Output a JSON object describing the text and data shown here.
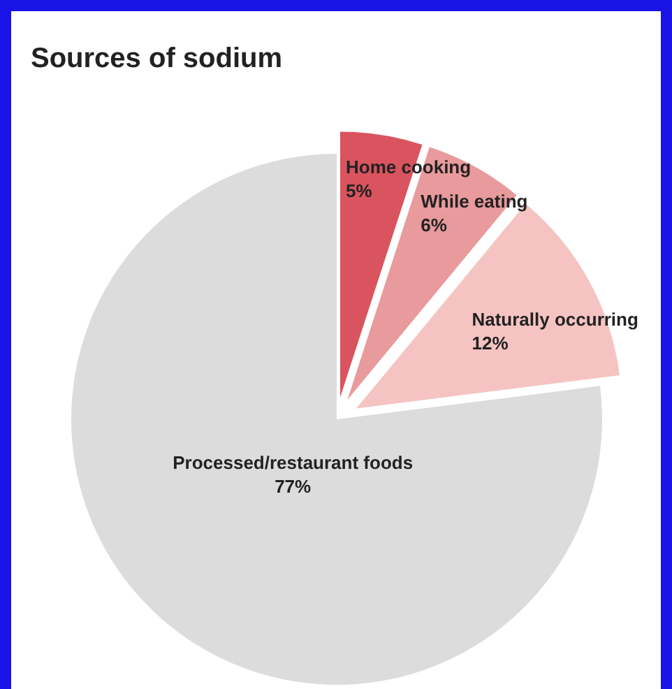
{
  "chart_data": {
    "type": "pie",
    "title": "Sources of sodium",
    "categories": [
      "Home cooking",
      "While eating",
      "Naturally occurring",
      "Processed/restaurant foods"
    ],
    "values": [
      5,
      6,
      12,
      77
    ],
    "colors": [
      "#d9545e",
      "#e89a9c",
      "#f5c4c2",
      "#dcdcdc"
    ],
    "value_labels": [
      "5%",
      "6%",
      "12%",
      "77%"
    ]
  }
}
